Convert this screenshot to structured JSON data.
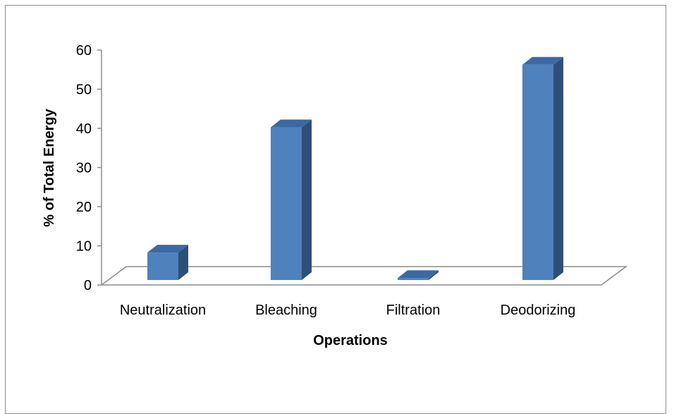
{
  "chart_data": {
    "type": "bar",
    "title": "",
    "xlabel": "Operations",
    "ylabel": "% of Total Energy",
    "categories": [
      "Neutralization",
      "Bleaching",
      "Filtration",
      "Deodorizing"
    ],
    "values": [
      7,
      39,
      0.5,
      55
    ],
    "ylim": [
      0,
      60
    ],
    "yticks": [
      "0",
      "10",
      "20",
      "30",
      "40",
      "50",
      "60"
    ],
    "grid": false,
    "legend": "none",
    "style": "3d-column",
    "colors": {
      "bar_front": "#4F81BD",
      "bar_top": "#3A6AA6",
      "bar_side": "#2F4F78",
      "axis": "#8c8c8c"
    }
  }
}
